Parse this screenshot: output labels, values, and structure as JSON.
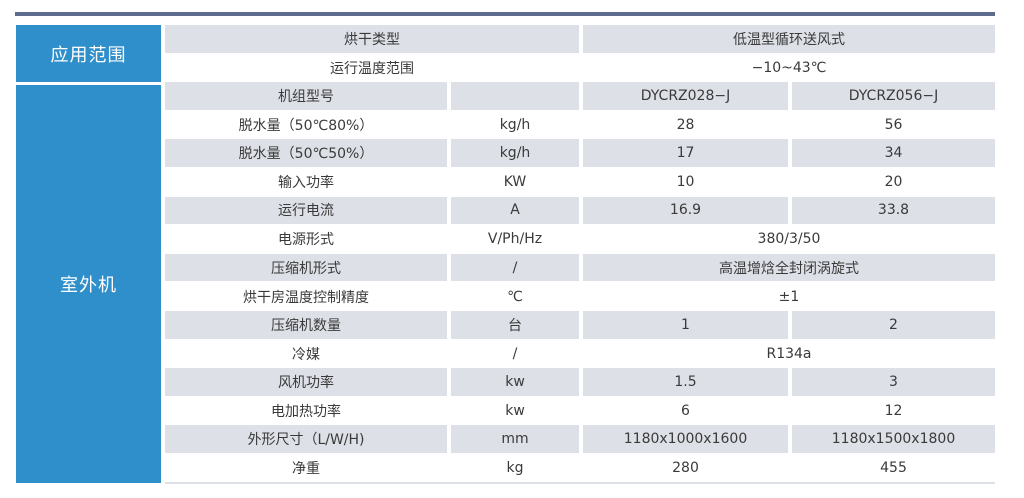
{
  "side": {
    "application": "应用范围",
    "outdoor": "室外机"
  },
  "rows": [
    {
      "label": "烘干类型",
      "unit": null,
      "values": [
        "低温型循环送风式"
      ]
    },
    {
      "label": "运行温度范围",
      "unit": null,
      "values": [
        "−10~43℃"
      ]
    },
    {
      "label": "机组型号",
      "unit": "",
      "values": [
        "DYCRZ028−J",
        "DYCRZ056−J"
      ]
    },
    {
      "label": "脱水量（50℃80%）",
      "unit": "kg/h",
      "values": [
        "28",
        "56"
      ]
    },
    {
      "label": "脱水量（50℃50%）",
      "unit": "kg/h",
      "values": [
        "17",
        "34"
      ]
    },
    {
      "label": "输入功率",
      "unit": "KW",
      "values": [
        "10",
        "20"
      ]
    },
    {
      "label": "运行电流",
      "unit": "A",
      "values": [
        "16.9",
        "33.8"
      ]
    },
    {
      "label": "电源形式",
      "unit": "V/Ph/Hz",
      "values": [
        "380/3/50"
      ]
    },
    {
      "label": "压缩机形式",
      "unit": "/",
      "values": [
        "高温增焓全封闭涡旋式"
      ]
    },
    {
      "label": "烘干房温度控制精度",
      "unit": "℃",
      "values": [
        "±1"
      ]
    },
    {
      "label": "压缩机数量",
      "unit": "台",
      "values": [
        "1",
        "2"
      ]
    },
    {
      "label": "冷媒",
      "unit": "/",
      "values": [
        "R134a"
      ]
    },
    {
      "label": "风机功率",
      "unit": "kw",
      "values": [
        "1.5",
        "3"
      ]
    },
    {
      "label": "电加热功率",
      "unit": "kw",
      "values": [
        "6",
        "12"
      ]
    },
    {
      "label": "外形尺寸（L/W/H)",
      "unit": "mm",
      "values": [
        "1180x1000x1600",
        "1180x1500x1800"
      ]
    },
    {
      "label": "净重",
      "unit": "kg",
      "values": [
        "280",
        "455"
      ]
    }
  ],
  "colors": {
    "accent": "#2f8fcb",
    "row_gray": "#dde0e7",
    "top_line": "#5d6b8c"
  }
}
